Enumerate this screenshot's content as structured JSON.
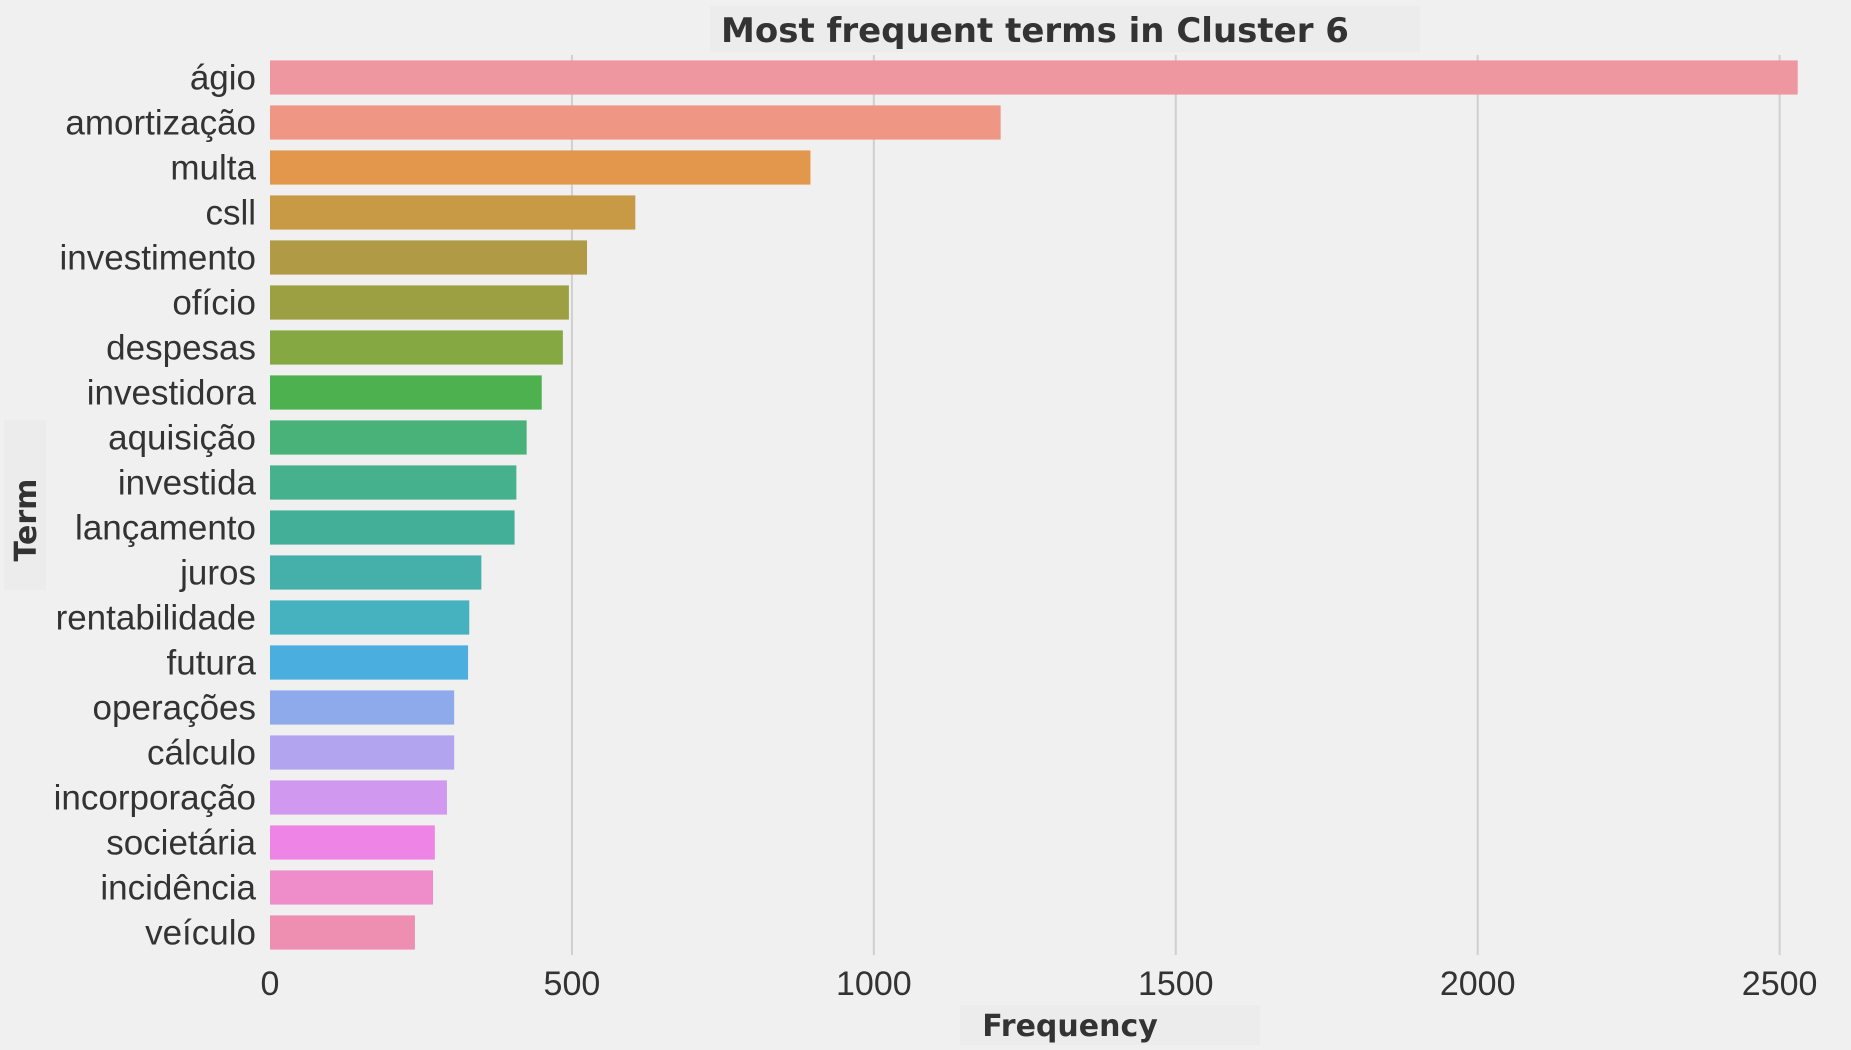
{
  "chart_data": {
    "type": "bar",
    "orientation": "horizontal",
    "title": "Most frequent terms in Cluster 6",
    "xlabel": "Frequency",
    "ylabel": "Term",
    "xlim": [
      0,
      2600
    ],
    "xticks": [
      "0",
      "500",
      "1000",
      "1500",
      "2000",
      "2500"
    ],
    "grid": "vertical",
    "categories": [
      "ágio",
      "amortização",
      "multa",
      "csll",
      "investimento",
      "ofício",
      "despesas",
      "investidora",
      "aquisição",
      "investida",
      "lançamento",
      "juros",
      "rentabilidade",
      "futura",
      "operações",
      "cálculo",
      "incorporação",
      "societária",
      "incidência",
      "veículo"
    ],
    "values": [
      2530,
      1210,
      895,
      605,
      525,
      495,
      485,
      450,
      425,
      408,
      405,
      350,
      330,
      328,
      305,
      305,
      293,
      273,
      270,
      240
    ],
    "colors": [
      "#ef97a0",
      "#f09684",
      "#e3974d",
      "#c89a45",
      "#b09a45",
      "#9ca043",
      "#85a843",
      "#4cb14e",
      "#48b278",
      "#45b18d",
      "#44af98",
      "#45b0aa",
      "#46b2bf",
      "#4aaede",
      "#8faaeb",
      "#b2a4ee",
      "#d098ee",
      "#ee85e6",
      "#ef8cca",
      "#ee8fb2"
    ]
  }
}
